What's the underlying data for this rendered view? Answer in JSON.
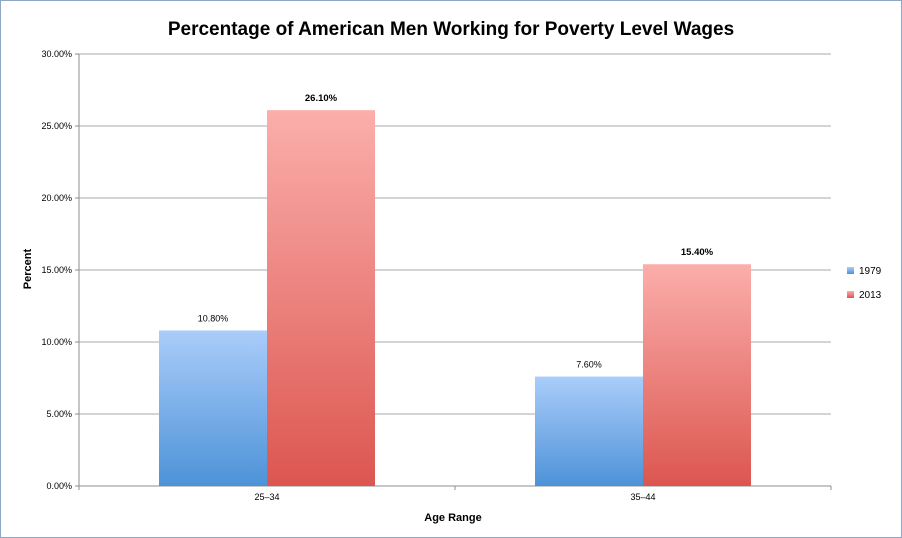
{
  "chart_data": {
    "type": "bar",
    "title": "Percentage of American Men Working for Poverty Level Wages",
    "xlabel": "Age Range",
    "ylabel": "Percent",
    "categories": [
      "25–34",
      "35–44"
    ],
    "series": [
      {
        "name": "1979",
        "values": [
          10.8,
          7.6
        ],
        "labels": [
          "10.80%",
          "7.60%"
        ],
        "color_top": "#aacdfa",
        "color_bottom": "#4d92d8"
      },
      {
        "name": "2013",
        "values": [
          26.1,
          15.4
        ],
        "labels": [
          "26.10%",
          "15.40%"
        ],
        "color_top": "#fbaeab",
        "color_bottom": "#dc5650"
      }
    ],
    "ylim": [
      0,
      30
    ],
    "yticks": [
      0,
      5,
      10,
      15,
      20,
      25,
      30
    ],
    "ytick_labels": [
      "0.00%",
      "5.00%",
      "10.00%",
      "15.00%",
      "20.00%",
      "25.00%",
      "30.00%"
    ],
    "grid": true,
    "legend_position": "right"
  }
}
